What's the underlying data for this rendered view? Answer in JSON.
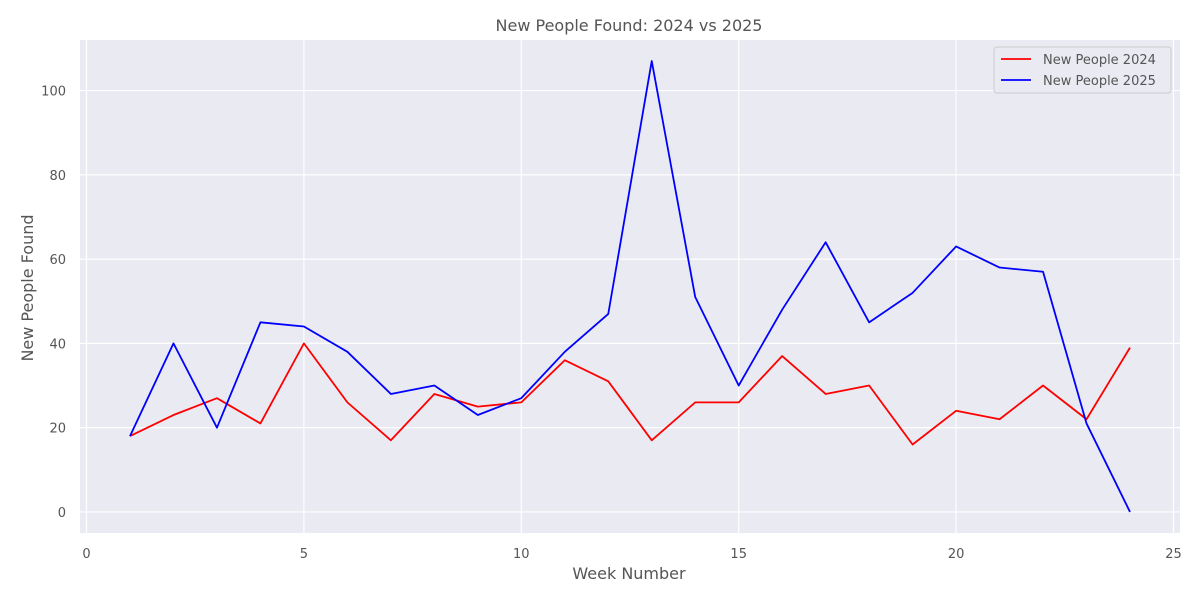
{
  "chart_data": {
    "type": "line",
    "title": "New People Found: 2024 vs 2025",
    "xlabel": "Week Number",
    "ylabel": "New People Found",
    "xlim": [
      -0.15,
      25.15
    ],
    "ylim": [
      -5,
      112
    ],
    "xticks": [
      0,
      5,
      10,
      15,
      20,
      25
    ],
    "yticks": [
      0,
      20,
      40,
      60,
      80,
      100
    ],
    "grid": true,
    "legend_position": "top-right",
    "x": [
      1,
      2,
      3,
      4,
      5,
      6,
      7,
      8,
      9,
      10,
      11,
      12,
      13,
      14,
      15,
      16,
      17,
      18,
      19,
      20,
      21,
      22,
      23,
      24
    ],
    "series": [
      {
        "name": "New People 2024",
        "color": "#ff0000",
        "values": [
          18,
          23,
          27,
          21,
          40,
          26,
          17,
          28,
          25,
          26,
          36,
          31,
          17,
          26,
          26,
          37,
          28,
          30,
          16,
          24,
          22,
          30,
          22,
          39
        ]
      },
      {
        "name": "New People 2025",
        "color": "#0000ff",
        "values": [
          18,
          40,
          20,
          45,
          44,
          38,
          28,
          30,
          23,
          27,
          38,
          47,
          107,
          51,
          30,
          48,
          64,
          45,
          52,
          63,
          58,
          57,
          21,
          0
        ]
      }
    ],
    "colors": {
      "plot_bg": "#eaeaf2",
      "grid": "#ffffff",
      "text": "#555555"
    }
  }
}
